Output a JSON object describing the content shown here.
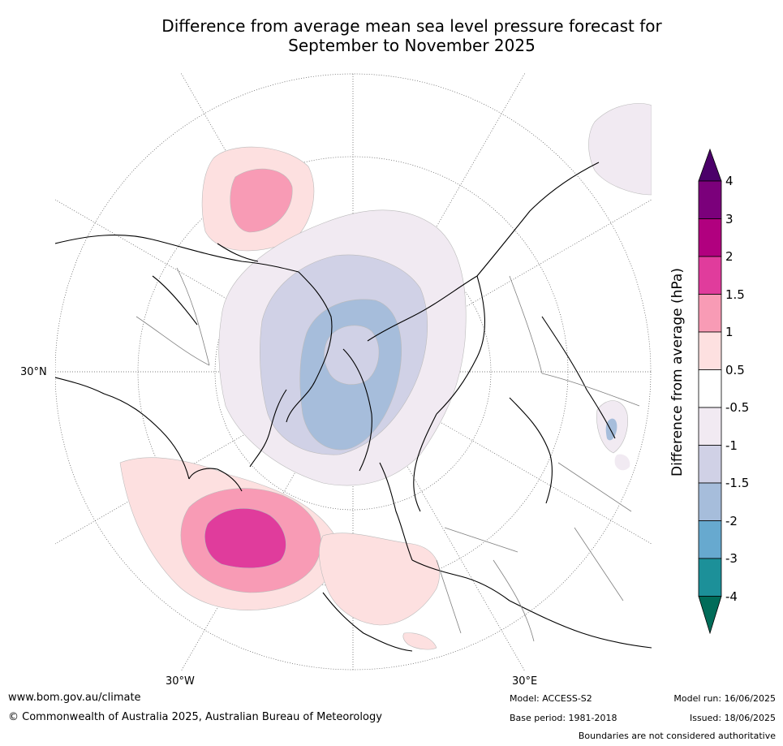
{
  "title_line1": "Difference from average mean sea level pressure forecast for",
  "title_line2": "September to November 2025",
  "graticule_labels": {
    "lat30n": "30°N",
    "lon30w": "30°W",
    "lon30e": "30°E"
  },
  "colorbar": {
    "label": "Difference from average (hPa)",
    "ticks": [
      "4",
      "3",
      "2",
      "1.5",
      "1",
      "0.5",
      "-0.5",
      "-1",
      "-1.5",
      "-2",
      "-3",
      "-4"
    ],
    "colors": {
      "above_4": "#4b0069",
      "c3_4": "#7b007b",
      "c2_3": "#b1007f",
      "c1_5_2": "#e03c9c",
      "c1_1_5": "#f89bb5",
      "c0_5_1": "#fde0e0",
      "c_neutral": "#ffffff",
      "cm1_m0_5": "#f1eaf2",
      "cm1_5_m1": "#d0d1e6",
      "cm2_m1_5": "#a6bddb",
      "cm3_m2": "#67a9cf",
      "cm4_m3": "#1c9099",
      "below_m4": "#016c59"
    }
  },
  "footer": {
    "url": "www.bom.gov.au/climate",
    "copyright": "© Commonwealth of Australia 2025, Australian Bureau of Meteorology",
    "model": "Model: ACCESS-S2",
    "base_period": "Base period: 1981-2018",
    "model_run": "Model run: 16/06/2025",
    "issued": "Issued: 18/06/2025",
    "disclaimer": "Boundaries are not considered authoritative"
  }
}
